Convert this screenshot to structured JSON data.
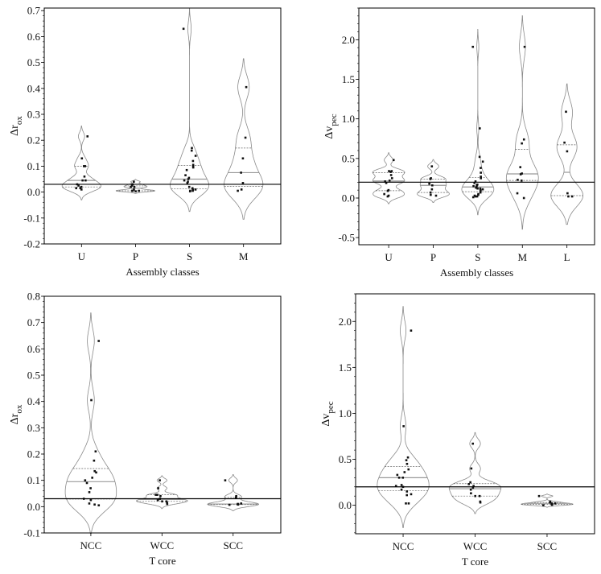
{
  "chart_data": [
    {
      "type": "violin",
      "xlabel": "Assembly classes",
      "ylabel": "Δr",
      "ylabel_sub": "ox",
      "categories": [
        "U",
        "P",
        "S",
        "M"
      ],
      "ylim": [
        -0.2,
        0.71
      ],
      "yticks": [
        -0.2,
        -0.1,
        0.0,
        0.1,
        0.2,
        0.3,
        0.4,
        0.5,
        0.6,
        0.7
      ],
      "ytick_labels": [
        "-0.2",
        "-0.1",
        "0.0",
        "0.1",
        "0.2",
        "0.3",
        "0.4",
        "0.5",
        "0.6",
        "0.7"
      ],
      "yminor_step": 0.02,
      "reference_line": 0.03,
      "series": [
        {
          "category": "U",
          "values": [
            0.215,
            0.13,
            0.1,
            0.1,
            0.06,
            0.045,
            0.045,
            0.03,
            0.025,
            0.02,
            0.015,
            0.015,
            0.01
          ]
        },
        {
          "category": "P",
          "values": [
            0.04,
            0.03,
            0.025,
            0.02,
            0.02,
            0.01,
            0.005,
            0.005,
            0.005,
            0.003
          ]
        },
        {
          "category": "S",
          "values": [
            0.63,
            0.17,
            0.16,
            0.14,
            0.12,
            0.105,
            0.1,
            0.095,
            0.085,
            0.065,
            0.055,
            0.05,
            0.045,
            0.04,
            0.035,
            0.02,
            0.015,
            0.01,
            0.01,
            0.008,
            0.005,
            0.005,
            0.003
          ]
        },
        {
          "category": "M",
          "values": [
            0.405,
            0.21,
            0.13,
            0.075,
            0.035,
            0.01,
            0.005
          ]
        }
      ]
    },
    {
      "type": "violin",
      "xlabel": "Assembly classes",
      "ylabel": "Δv",
      "ylabel_sub": "pec",
      "categories": [
        "U",
        "P",
        "S",
        "M",
        "L"
      ],
      "ylim": [
        -0.59,
        2.4
      ],
      "yticks": [
        -0.5,
        0.0,
        0.5,
        1.0,
        1.5,
        2.0
      ],
      "ytick_labels": [
        "-0.5",
        "0.0",
        "0.5",
        "1.0",
        "1.5",
        "2.0"
      ],
      "yminor_step": 0.1,
      "reference_line": 0.2,
      "series": [
        {
          "category": "U",
          "values": [
            0.48,
            0.34,
            0.34,
            0.33,
            0.29,
            0.25,
            0.22,
            0.21,
            0.19,
            0.1,
            0.09,
            0.05,
            0.03,
            0.02
          ]
        },
        {
          "category": "P",
          "values": [
            0.4,
            0.25,
            0.24,
            0.18,
            0.16,
            0.11,
            0.07,
            0.04,
            0.03
          ]
        },
        {
          "category": "S",
          "values": [
            1.91,
            0.88,
            0.52,
            0.46,
            0.38,
            0.32,
            0.27,
            0.25,
            0.21,
            0.19,
            0.17,
            0.16,
            0.15,
            0.14,
            0.13,
            0.12,
            0.12,
            0.11,
            0.1,
            0.09,
            0.07,
            0.05,
            0.04,
            0.03,
            0.02,
            0.02,
            0.01
          ]
        },
        {
          "category": "M",
          "values": [
            1.91,
            0.74,
            0.69,
            0.39,
            0.31,
            0.3,
            0.23,
            0.22,
            0.06,
            0.0
          ]
        },
        {
          "category": "L",
          "values": [
            1.09,
            0.7,
            0.59,
            0.06,
            0.02,
            0.02
          ]
        }
      ]
    },
    {
      "type": "violin",
      "xlabel": "T core",
      "ylabel": "Δr",
      "ylabel_sub": "ox",
      "categories": [
        "NCC",
        "WCC",
        "SCC"
      ],
      "ylim": [
        -0.1,
        0.8
      ],
      "yticks": [
        -0.1,
        0.0,
        0.1,
        0.2,
        0.3,
        0.4,
        0.5,
        0.6,
        0.7,
        0.8
      ],
      "ytick_labels": [
        "-0.1",
        "0.0",
        "0.1",
        "0.2",
        "0.3",
        "0.4",
        "0.5",
        "0.6",
        "0.7",
        "0.8"
      ],
      "yminor_step": 0.02,
      "reference_line": 0.03,
      "series": [
        {
          "category": "NCC",
          "values": [
            0.63,
            0.405,
            0.21,
            0.175,
            0.135,
            0.13,
            0.11,
            0.1,
            0.09,
            0.07,
            0.055,
            0.03,
            0.025,
            0.012,
            0.008,
            0.005
          ]
        },
        {
          "category": "WCC",
          "values": [
            0.1,
            0.07,
            0.045,
            0.045,
            0.04,
            0.03,
            0.025,
            0.025,
            0.02,
            0.02,
            0.015,
            0.01
          ]
        },
        {
          "category": "SCC",
          "values": [
            0.1,
            0.04,
            0.035,
            0.012,
            0.01,
            0.01,
            0.008,
            0.008,
            0.007
          ]
        }
      ]
    },
    {
      "type": "violin",
      "xlabel": "T core",
      "ylabel": "Δv",
      "ylabel_sub": "pec",
      "categories": [
        "NCC",
        "WCC",
        "SCC"
      ],
      "ylim": [
        -0.31,
        2.3
      ],
      "yticks": [
        0.0,
        0.5,
        1.0,
        1.5,
        2.0
      ],
      "ytick_labels": [
        "0.0",
        "0.5",
        "1.0",
        "1.5",
        "2.0"
      ],
      "yminor_step": 0.1,
      "reference_line": 0.2,
      "series": [
        {
          "category": "NCC",
          "values": [
            1.9,
            0.86,
            0.52,
            0.49,
            0.45,
            0.39,
            0.36,
            0.33,
            0.3,
            0.3,
            0.22,
            0.21,
            0.2,
            0.17,
            0.15,
            0.12,
            0.11,
            0.02,
            0.02
          ]
        },
        {
          "category": "WCC",
          "values": [
            0.67,
            0.4,
            0.25,
            0.23,
            0.21,
            0.19,
            0.17,
            0.13,
            0.1,
            0.1,
            0.04,
            0.03
          ]
        },
        {
          "category": "SCC",
          "values": [
            0.1,
            0.04,
            0.03,
            0.02,
            0.02,
            0.01,
            0.01,
            0.005,
            0.0
          ]
        }
      ]
    }
  ]
}
